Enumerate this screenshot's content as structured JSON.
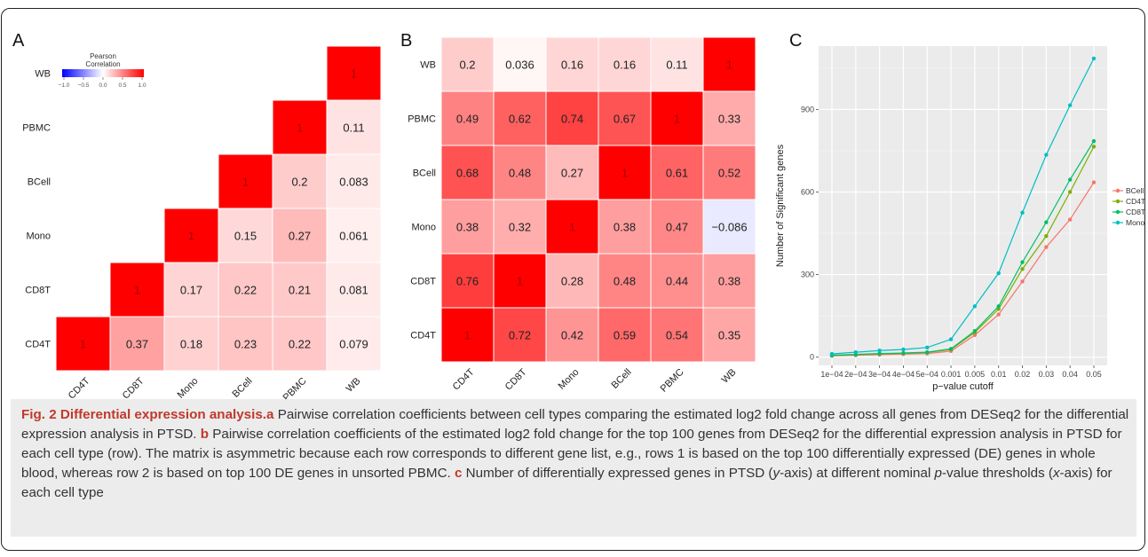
{
  "panels": {
    "a": {
      "letter": "A",
      "legend": {
        "title_l1": "Pearson",
        "title_l2": "Correlation",
        "ticks": [
          "-1.0",
          "-0.5",
          "0.0",
          "0.5",
          "1.0"
        ]
      }
    },
    "b": {
      "letter": "B"
    },
    "c": {
      "letter": "C"
    }
  },
  "chart_data": [
    {
      "type": "heatmap",
      "rows": [
        "WB",
        "PBMC",
        "BCell",
        "Mono",
        "CD8T",
        "CD4T"
      ],
      "columns": [
        "CD4T",
        "CD8T",
        "Mono",
        "BCell",
        "PBMC",
        "WB"
      ],
      "cells": [
        [
          null,
          null,
          null,
          null,
          null,
          "1"
        ],
        [
          null,
          null,
          null,
          null,
          "1",
          "0.11"
        ],
        [
          null,
          null,
          null,
          "1",
          "0.2",
          "0.083"
        ],
        [
          null,
          null,
          "1",
          "0.15",
          "0.27",
          "0.061"
        ],
        [
          null,
          "1",
          "0.17",
          "0.22",
          "0.21",
          "0.081"
        ],
        [
          "1",
          "0.37",
          "0.18",
          "0.23",
          "0.22",
          "0.079"
        ]
      ],
      "color_scale": {
        "min": -1,
        "max": 1,
        "low": "#0000ff",
        "mid": "#ffffff",
        "high": "#ff0000"
      }
    },
    {
      "type": "heatmap",
      "rows": [
        "WB",
        "PBMC",
        "BCell",
        "Mono",
        "CD8T",
        "CD4T"
      ],
      "columns": [
        "CD4T",
        "CD8T",
        "Mono",
        "BCell",
        "PBMC",
        "WB"
      ],
      "cells": [
        [
          "0.2",
          "0.036",
          "0.16",
          "0.16",
          "0.11",
          "1"
        ],
        [
          "0.49",
          "0.62",
          "0.74",
          "0.67",
          "1",
          "0.33"
        ],
        [
          "0.68",
          "0.48",
          "0.27",
          "1",
          "0.61",
          "0.52"
        ],
        [
          "0.38",
          "0.32",
          "1",
          "0.38",
          "0.47",
          "−0.086"
        ],
        [
          "0.76",
          "1",
          "0.28",
          "0.48",
          "0.44",
          "0.38"
        ],
        [
          "1",
          "0.72",
          "0.42",
          "0.59",
          "0.54",
          "0.35"
        ]
      ],
      "color_scale": {
        "min": -1,
        "max": 1,
        "low": "#0000ff",
        "mid": "#ffffff",
        "high": "#ff0000"
      }
    },
    {
      "type": "line",
      "x": [
        "1e−04",
        "2e−04",
        "3e−04",
        "4e−04",
        "5e−04",
        "0.001",
        "0.005",
        "0.01",
        "0.02",
        "0.03",
        "0.04",
        "0.05"
      ],
      "x_tick_labels": [
        "1e−04",
        "2e−04",
        "3e−04",
        "4e−04",
        "5e−04",
        "0.001",
        "0.005",
        "0.01",
        "0.02",
        "0.03",
        "0.04",
        "0.05"
      ],
      "xlabel": "p−value cutoff",
      "ylabel": "Number of Significant genes",
      "ylim": [
        -30,
        1130
      ],
      "y_ticks": [
        0,
        300,
        600,
        900
      ],
      "y_tick_labels": [
        "0",
        "300",
        "600",
        "900"
      ],
      "grid": true,
      "legend_position": "right",
      "series": [
        {
          "name": "BCell",
          "color": "#f8766d",
          "values": [
            5,
            7,
            9,
            11,
            13,
            22,
            80,
            155,
            275,
            400,
            500,
            635
          ]
        },
        {
          "name": "CD4T",
          "color": "#7cae00",
          "values": [
            6,
            9,
            12,
            14,
            17,
            28,
            90,
            175,
            320,
            440,
            600,
            765
          ]
        },
        {
          "name": "CD8T",
          "color": "#00be67",
          "values": [
            7,
            10,
            13,
            15,
            18,
            30,
            95,
            185,
            345,
            490,
            645,
            785
          ]
        },
        {
          "name": "Mono",
          "color": "#00bfc4",
          "values": [
            12,
            18,
            24,
            28,
            35,
            65,
            185,
            305,
            525,
            735,
            915,
            1085
          ]
        }
      ]
    }
  ],
  "caption": {
    "fig_label": "Fig. 2 Differential expression analysis.",
    "a_label": "a",
    "a_text": " Pairwise correlation coefficients between cell types comparing the estimated log2 fold change across all genes from DESeq2 for the differential expression analysis in PTSD. ",
    "b_label": "b",
    "b_text": " Pairwise correlation coefficients of the estimated log2 fold change for the top 100 genes from DESeq2 for the differential expression analysis in PTSD for each cell type (row). The matrix is asymmetric because each row corresponds to different gene list, e.g., rows 1 is based on the top 100 differentially expressed (DE) genes in whole blood, whereas row 2 is based on top 100 DE genes in unsorted PBMC. ",
    "c_label": "c",
    "c_text1": " Number of differentially expressed genes in PTSD (",
    "c_y": "y",
    "c_text2": "-axis) at different nominal ",
    "c_p": "p",
    "c_text3": "-value thresholds (",
    "c_x": "x",
    "c_text4": "-axis) for each cell type"
  }
}
